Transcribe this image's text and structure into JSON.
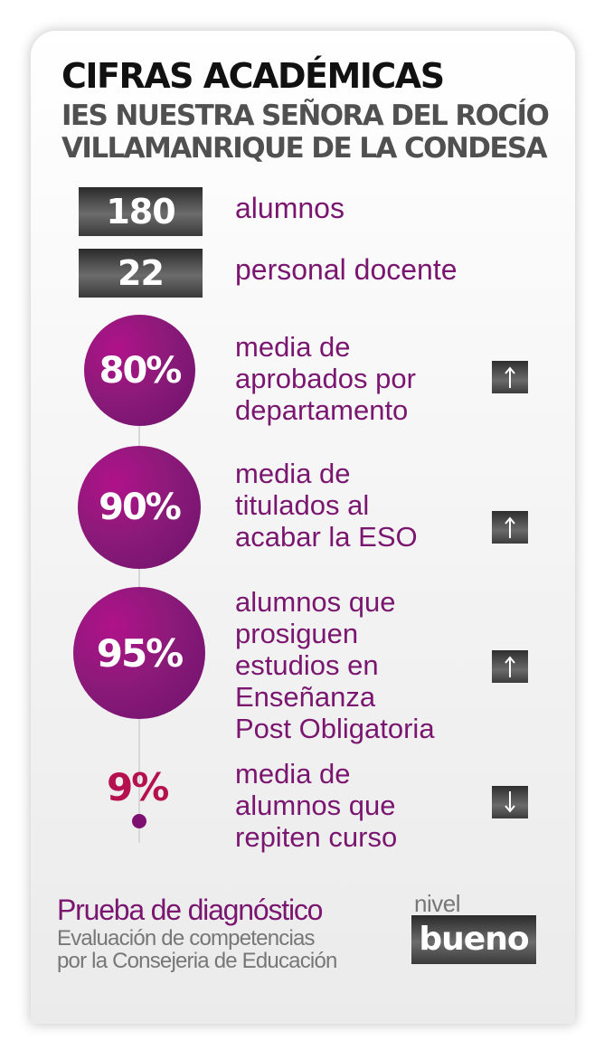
{
  "header": {
    "title": "CIFRAS ACADÉMICAS",
    "school_line1": "IES NUESTRA SEÑORA DEL ROCÍO",
    "school_line2": "VILLAMANRIQUE DE LA CONDESA"
  },
  "stats": [
    {
      "value": "180",
      "label": "alumnos"
    },
    {
      "value": "22",
      "label": "personal docente"
    }
  ],
  "metrics": [
    {
      "value": "80%",
      "lines": [
        "media de",
        "aprobados por",
        "departamento"
      ],
      "trend": "up"
    },
    {
      "value": "90%",
      "lines": [
        "media de",
        "titulados al",
        "acabar la ESO"
      ],
      "trend": "up"
    },
    {
      "value": "95%",
      "lines": [
        "alumnos que",
        "prosiguen",
        "estudios en",
        "Enseñanza",
        "Post Obligatoria"
      ],
      "trend": "up"
    },
    {
      "value": "9%",
      "lines": [
        "media de",
        "alumnos que",
        "repiten curso"
      ],
      "trend": "down"
    }
  ],
  "footer": {
    "title": "Prueba de diagnóstico",
    "subtitle_line1": "Evaluación de competencias",
    "subtitle_line2": "por la Consejeria de Educación",
    "level_label": "nivel",
    "level_value": "bueno"
  },
  "icons": {
    "up": "arrow-up-icon",
    "down": "arrow-down-icon"
  },
  "colors": {
    "accent": "#7a1670",
    "small_pct": "#b5114f",
    "dark_box": "#3a3a3a"
  }
}
